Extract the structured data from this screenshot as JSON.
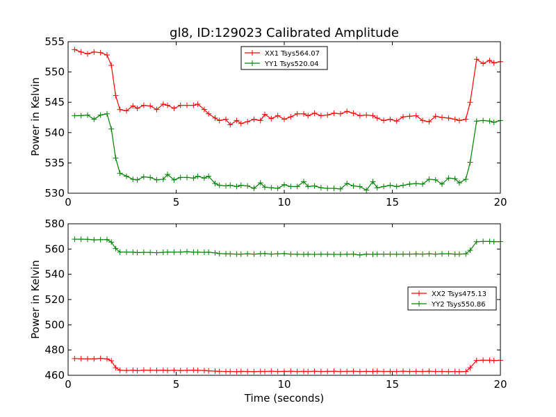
{
  "title": "gl8, ID:129023 Calibrated Amplitude",
  "chart_data": [
    {
      "type": "line",
      "ylabel": "Power in Kelvin",
      "xlabel": "",
      "xlim": [
        0,
        20
      ],
      "ylim": [
        530,
        555
      ],
      "xticks": [
        0,
        5,
        10,
        15,
        20
      ],
      "yticks": [
        530,
        535,
        540,
        545,
        550,
        555
      ],
      "legend_position": "top-center",
      "x": [
        0.3,
        0.6,
        0.9,
        1.2,
        1.5,
        1.8,
        2.0,
        2.2,
        2.4,
        2.7,
        3.0,
        3.2,
        3.5,
        3.8,
        4.1,
        4.4,
        4.6,
        4.9,
        5.2,
        5.5,
        5.8,
        6.0,
        6.3,
        6.5,
        6.8,
        7.0,
        7.3,
        7.5,
        7.8,
        8.0,
        8.3,
        8.6,
        8.9,
        9.1,
        9.4,
        9.7,
        10.0,
        10.3,
        10.6,
        10.9,
        11.1,
        11.4,
        11.7,
        12.0,
        12.3,
        12.6,
        12.9,
        13.2,
        13.5,
        13.8,
        14.1,
        14.3,
        14.6,
        14.9,
        15.2,
        15.5,
        15.8,
        16.1,
        16.4,
        16.7,
        17.0,
        17.3,
        17.6,
        17.9,
        18.1,
        18.4,
        18.6,
        18.9,
        19.2,
        19.5,
        19.7,
        20.0
      ],
      "series": [
        {
          "name": "XX1 Tsys564.07",
          "color": "#ff0000",
          "values": [
            553.7,
            553.3,
            553.0,
            553.3,
            553.2,
            552.8,
            551.1,
            546.1,
            543.8,
            543.6,
            544.4,
            544.0,
            544.5,
            544.4,
            543.8,
            544.7,
            544.5,
            544.0,
            544.5,
            544.5,
            544.5,
            544.7,
            543.8,
            543.1,
            542.4,
            542.0,
            542.2,
            541.3,
            542.0,
            541.5,
            541.8,
            542.2,
            542.0,
            543.0,
            542.3,
            542.8,
            542.2,
            542.6,
            543.1,
            543.1,
            542.8,
            543.2,
            542.8,
            542.9,
            543.2,
            543.1,
            543.5,
            543.2,
            542.8,
            542.9,
            542.8,
            542.4,
            542.0,
            542.2,
            541.9,
            542.6,
            542.7,
            542.8,
            542.0,
            541.8,
            542.7,
            542.5,
            542.4,
            542.2,
            542.0,
            542.2,
            545.0,
            552.1,
            551.4,
            551.9,
            551.5,
            551.7
          ]
        },
        {
          "name": "YY1 Tsys520.04",
          "color": "#008000",
          "values": [
            542.8,
            542.8,
            542.9,
            542.2,
            542.9,
            543.1,
            540.6,
            535.8,
            533.3,
            532.8,
            532.3,
            532.2,
            532.7,
            532.6,
            532.2,
            532.3,
            533.1,
            532.2,
            532.6,
            532.6,
            532.5,
            532.8,
            532.5,
            532.8,
            531.6,
            531.3,
            531.2,
            531.3,
            531.1,
            531.3,
            531.2,
            530.8,
            531.7,
            531.0,
            530.9,
            530.8,
            531.4,
            531.1,
            531.1,
            531.9,
            531.1,
            531.2,
            530.9,
            530.8,
            530.8,
            530.7,
            531.6,
            531.2,
            531.1,
            530.5,
            531.9,
            530.9,
            531.1,
            531.3,
            531.1,
            531.3,
            531.5,
            531.6,
            531.5,
            532.3,
            532.2,
            531.5,
            532.5,
            532.4,
            531.7,
            532.3,
            535.1,
            541.9,
            542.0,
            541.9,
            541.7,
            542.0
          ]
        }
      ]
    },
    {
      "type": "line",
      "ylabel": "Power in Kelvin",
      "xlabel": "Time (seconds)",
      "xlim": [
        0,
        20
      ],
      "ylim": [
        460,
        580
      ],
      "xticks": [
        0,
        5,
        10,
        15,
        20
      ],
      "yticks": [
        460,
        480,
        500,
        520,
        540,
        560,
        580
      ],
      "legend_position": "center-right",
      "x": [
        0.3,
        0.6,
        0.9,
        1.2,
        1.5,
        1.8,
        2.0,
        2.2,
        2.4,
        2.7,
        3.0,
        3.2,
        3.5,
        3.8,
        4.1,
        4.4,
        4.6,
        4.9,
        5.2,
        5.5,
        5.8,
        6.0,
        6.3,
        6.5,
        6.8,
        7.0,
        7.3,
        7.5,
        7.8,
        8.0,
        8.3,
        8.6,
        8.9,
        9.1,
        9.4,
        9.7,
        10.0,
        10.3,
        10.6,
        10.9,
        11.1,
        11.4,
        11.7,
        12.0,
        12.3,
        12.6,
        12.9,
        13.2,
        13.5,
        13.8,
        14.1,
        14.3,
        14.6,
        14.9,
        15.2,
        15.5,
        15.8,
        16.1,
        16.4,
        16.7,
        17.0,
        17.3,
        17.6,
        17.9,
        18.1,
        18.4,
        18.6,
        18.9,
        19.2,
        19.5,
        19.7,
        20.0
      ],
      "series": [
        {
          "name": "XX2 Tsys475.13",
          "color": "#ff0000",
          "values": [
            473.3,
            473.1,
            473.0,
            473.0,
            473.4,
            473.0,
            471.5,
            466.0,
            464.0,
            463.8,
            464.0,
            463.7,
            464.1,
            464.0,
            463.9,
            464.0,
            463.8,
            464.0,
            463.8,
            463.9,
            464.1,
            463.9,
            463.8,
            463.5,
            463.3,
            463.1,
            463.0,
            463.0,
            462.9,
            463.1,
            463.0,
            462.9,
            463.1,
            463.0,
            463.2,
            463.0,
            463.1,
            463.2,
            463.0,
            463.1,
            463.0,
            463.2,
            463.0,
            463.1,
            463.2,
            463.0,
            463.1,
            463.2,
            463.0,
            463.1,
            463.0,
            463.2,
            463.0,
            463.1,
            463.0,
            463.2,
            463.0,
            463.1,
            463.0,
            463.2,
            463.0,
            463.0,
            462.9,
            463.0,
            462.8,
            463.0,
            466.0,
            471.8,
            472.0,
            471.9,
            471.7,
            471.9
          ]
        },
        {
          "name": "YY2 Tsys550.86",
          "color": "#008000",
          "values": [
            567.8,
            567.8,
            567.7,
            567.3,
            567.4,
            567.5,
            565.5,
            560.4,
            557.6,
            557.6,
            557.5,
            557.2,
            557.4,
            557.3,
            557.1,
            557.4,
            557.6,
            557.5,
            557.6,
            557.9,
            557.5,
            557.5,
            557.4,
            557.5,
            557.0,
            556.4,
            556.2,
            556.1,
            556.0,
            556.0,
            556.2,
            556.0,
            556.3,
            556.4,
            556.0,
            556.2,
            556.4,
            556.0,
            555.9,
            555.8,
            555.9,
            555.8,
            555.9,
            555.9,
            555.8,
            555.8,
            555.9,
            556.0,
            555.3,
            556.0,
            555.8,
            556.0,
            556.0,
            556.0,
            555.9,
            556.0,
            556.0,
            556.1,
            556.0,
            556.2,
            556.0,
            556.2,
            556.3,
            556.0,
            556.0,
            556.2,
            559.0,
            565.8,
            566.0,
            566.0,
            565.8,
            565.9
          ]
        }
      ]
    }
  ]
}
